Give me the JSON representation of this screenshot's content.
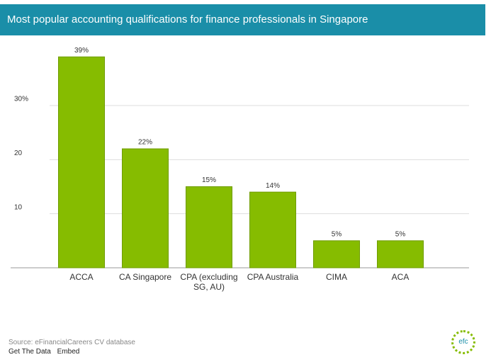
{
  "chart_data": {
    "type": "bar",
    "title": "Most popular accounting qualifications for finance professionals in Singapore",
    "categories": [
      "ACCA",
      "CA Singapore",
      "CPA (excluding SG, AU)",
      "CPA Australia",
      "CIMA",
      "ACA"
    ],
    "values": [
      39,
      22,
      15,
      14,
      5,
      5
    ],
    "value_labels": [
      "39%",
      "22%",
      "15%",
      "14%",
      "5%",
      "5%"
    ],
    "color": "#86bc00",
    "ylim": [
      0,
      41
    ],
    "yticks": [
      10,
      20,
      {
        "value": 30,
        "label": "30%"
      }
    ],
    "grid": true,
    "source": "Source: eFinancialCareers CV database",
    "links": [
      "Get The Data",
      "Embed"
    ],
    "logo": "efc"
  }
}
